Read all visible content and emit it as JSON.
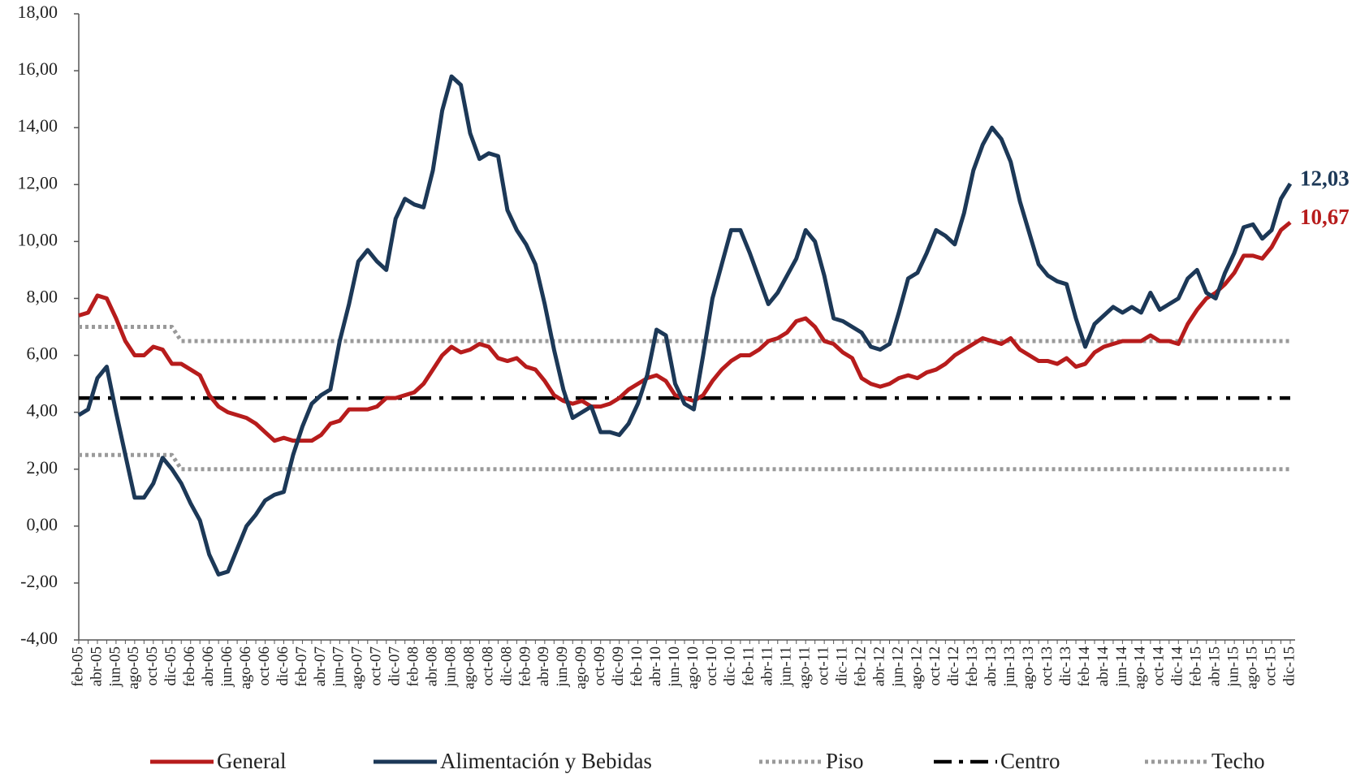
{
  "chart_data": {
    "type": "line",
    "categories": [
      "feb-05",
      null,
      "abr-05",
      null,
      "jun-05",
      null,
      "ago-05",
      null,
      "oct-05",
      null,
      "dic-05",
      null,
      "feb-06",
      null,
      "abr-06",
      null,
      "jun-06",
      null,
      "ago-06",
      null,
      "oct-06",
      null,
      "dic-06",
      null,
      "feb-07",
      null,
      "abr-07",
      null,
      "jun-07",
      null,
      "ago-07",
      null,
      "oct-07",
      null,
      "dic-07",
      null,
      "feb-08",
      null,
      "abr-08",
      null,
      "jun-08",
      null,
      "ago-08",
      null,
      "oct-08",
      null,
      "dic-08",
      null,
      "feb-09",
      null,
      "abr-09",
      null,
      "jun-09",
      null,
      "ago-09",
      null,
      "oct-09",
      null,
      "dic-09",
      null,
      "feb-10",
      null,
      "abr-10",
      null,
      "jun-10",
      null,
      "ago-10",
      null,
      "oct-10",
      null,
      "dic-10",
      null,
      "feb-11",
      null,
      "abr-11",
      null,
      "jun-11",
      null,
      "ago-11",
      null,
      "oct-11",
      null,
      "dic-11",
      null,
      "feb-12",
      null,
      "abr-12",
      null,
      "jun-12",
      null,
      "ago-12",
      null,
      "oct-12",
      null,
      "dic-12",
      null,
      "feb-13",
      null,
      "abr-13",
      null,
      "jun-13",
      null,
      "ago-13",
      null,
      "oct-13",
      null,
      "dic-13",
      null,
      "feb-14",
      null,
      "abr-14",
      null,
      "jun-14",
      null,
      "ago-14",
      null,
      "oct-14",
      null,
      "dic-14",
      null,
      "feb-15",
      null,
      "abr-15",
      null,
      "jun-15",
      null,
      "ago-15",
      null,
      "oct-15",
      null,
      "dic-15"
    ],
    "series": [
      {
        "name": "General",
        "color": "#b71c1c",
        "style": "solid",
        "last_label": "10,67",
        "values": [
          7.4,
          7.5,
          8.1,
          8.0,
          7.3,
          6.5,
          6.0,
          6.0,
          6.3,
          6.2,
          5.7,
          5.7,
          5.5,
          5.3,
          4.6,
          4.2,
          4.0,
          3.9,
          3.8,
          3.6,
          3.3,
          3.0,
          3.1,
          3.0,
          3.0,
          3.0,
          3.2,
          3.6,
          3.7,
          4.1,
          4.1,
          4.1,
          4.2,
          4.5,
          4.5,
          4.6,
          4.7,
          5.0,
          5.5,
          6.0,
          6.3,
          6.1,
          6.2,
          6.4,
          6.3,
          5.9,
          5.8,
          5.9,
          5.6,
          5.5,
          5.1,
          4.6,
          4.4,
          4.3,
          4.4,
          4.2,
          4.2,
          4.3,
          4.5,
          4.8,
          5.0,
          5.2,
          5.3,
          5.1,
          4.6,
          4.5,
          4.4,
          4.6,
          5.1,
          5.5,
          5.8,
          6.0,
          6.0,
          6.2,
          6.5,
          6.6,
          6.8,
          7.2,
          7.3,
          7.0,
          6.5,
          6.4,
          6.1,
          5.9,
          5.2,
          5.0,
          4.9,
          5.0,
          5.2,
          5.3,
          5.2,
          5.4,
          5.5,
          5.7,
          6.0,
          6.2,
          6.4,
          6.6,
          6.5,
          6.4,
          6.6,
          6.2,
          6.0,
          5.8,
          5.8,
          5.7,
          5.9,
          5.6,
          5.7,
          6.1,
          6.3,
          6.4,
          6.5,
          6.5,
          6.5,
          6.7,
          6.5,
          6.5,
          6.4,
          7.1,
          7.6,
          8.0,
          8.2,
          8.5,
          8.9,
          9.5,
          9.5,
          9.4,
          9.8,
          10.4,
          10.67
        ]
      },
      {
        "name": "Alimentación y Bebidas",
        "color": "#1c3857",
        "style": "solid",
        "last_label": "12,03",
        "values": [
          3.9,
          4.1,
          5.2,
          5.6,
          4.0,
          2.5,
          1.0,
          1.0,
          1.5,
          2.4,
          2.0,
          1.5,
          0.8,
          0.2,
          -1.0,
          -1.7,
          -1.6,
          -0.8,
          0.0,
          0.4,
          0.9,
          1.1,
          1.2,
          2.5,
          3.5,
          4.3,
          4.6,
          4.8,
          6.5,
          7.8,
          9.3,
          9.7,
          9.3,
          9.0,
          10.8,
          11.5,
          11.3,
          11.2,
          12.5,
          14.6,
          15.8,
          15.5,
          13.8,
          12.9,
          13.1,
          13.0,
          11.1,
          10.4,
          9.9,
          9.2,
          7.8,
          6.2,
          4.8,
          3.8,
          4.0,
          4.2,
          3.3,
          3.3,
          3.2,
          3.6,
          4.3,
          5.3,
          6.9,
          6.7,
          5.0,
          4.3,
          4.1,
          6.0,
          8.0,
          9.2,
          10.4,
          10.4,
          9.6,
          8.7,
          7.8,
          8.2,
          8.8,
          9.4,
          10.4,
          10.0,
          8.8,
          7.3,
          7.2,
          7.0,
          6.8,
          6.3,
          6.2,
          6.4,
          7.5,
          8.7,
          8.9,
          9.6,
          10.4,
          10.2,
          9.9,
          11.0,
          12.5,
          13.4,
          14.0,
          13.6,
          12.8,
          11.4,
          10.3,
          9.2,
          8.8,
          8.6,
          8.5,
          7.3,
          6.3,
          7.1,
          7.4,
          7.7,
          7.5,
          7.7,
          7.5,
          8.2,
          7.6,
          7.8,
          8.0,
          8.7,
          9.0,
          8.2,
          8.0,
          8.9,
          9.6,
          10.5,
          10.6,
          10.1,
          10.4,
          11.5,
          12.03
        ]
      },
      {
        "name": "Piso",
        "color": "#9a9a9a",
        "style": "dotted",
        "values": [
          2.5,
          2.5,
          2.5,
          2.5,
          2.5,
          2.5,
          2.5,
          2.5,
          2.5,
          2.5,
          2.5,
          2,
          2,
          2,
          2,
          2,
          2,
          2,
          2,
          2,
          2,
          2,
          2,
          2,
          2,
          2,
          2,
          2,
          2,
          2,
          2,
          2,
          2,
          2,
          2,
          2,
          2,
          2,
          2,
          2,
          2,
          2,
          2,
          2,
          2,
          2,
          2,
          2,
          2,
          2,
          2,
          2,
          2,
          2,
          2,
          2,
          2,
          2,
          2,
          2,
          2,
          2,
          2,
          2,
          2,
          2,
          2,
          2,
          2,
          2,
          2,
          2,
          2,
          2,
          2,
          2,
          2,
          2,
          2,
          2,
          2,
          2,
          2,
          2,
          2,
          2,
          2,
          2,
          2,
          2,
          2,
          2,
          2,
          2,
          2,
          2,
          2,
          2,
          2,
          2,
          2,
          2,
          2,
          2,
          2,
          2,
          2,
          2,
          2,
          2,
          2,
          2,
          2,
          2,
          2,
          2,
          2,
          2,
          2,
          2,
          2,
          2,
          2,
          2,
          2,
          2,
          2,
          2,
          2,
          2,
          2
        ]
      },
      {
        "name": "Centro",
        "color": "#000000",
        "style": "dashdot",
        "values": [
          4.5,
          4.5,
          4.5,
          4.5,
          4.5,
          4.5,
          4.5,
          4.5,
          4.5,
          4.5,
          4.5,
          4.5,
          4.5,
          4.5,
          4.5,
          4.5,
          4.5,
          4.5,
          4.5,
          4.5,
          4.5,
          4.5,
          4.5,
          4.5,
          4.5,
          4.5,
          4.5,
          4.5,
          4.5,
          4.5,
          4.5,
          4.5,
          4.5,
          4.5,
          4.5,
          4.5,
          4.5,
          4.5,
          4.5,
          4.5,
          4.5,
          4.5,
          4.5,
          4.5,
          4.5,
          4.5,
          4.5,
          4.5,
          4.5,
          4.5,
          4.5,
          4.5,
          4.5,
          4.5,
          4.5,
          4.5,
          4.5,
          4.5,
          4.5,
          4.5,
          4.5,
          4.5,
          4.5,
          4.5,
          4.5,
          4.5,
          4.5,
          4.5,
          4.5,
          4.5,
          4.5,
          4.5,
          4.5,
          4.5,
          4.5,
          4.5,
          4.5,
          4.5,
          4.5,
          4.5,
          4.5,
          4.5,
          4.5,
          4.5,
          4.5,
          4.5,
          4.5,
          4.5,
          4.5,
          4.5,
          4.5,
          4.5,
          4.5,
          4.5,
          4.5,
          4.5,
          4.5,
          4.5,
          4.5,
          4.5,
          4.5,
          4.5,
          4.5,
          4.5,
          4.5,
          4.5,
          4.5,
          4.5,
          4.5,
          4.5,
          4.5,
          4.5,
          4.5,
          4.5,
          4.5,
          4.5,
          4.5,
          4.5,
          4.5,
          4.5,
          4.5,
          4.5,
          4.5,
          4.5,
          4.5,
          4.5,
          4.5,
          4.5,
          4.5,
          4.5,
          4.5
        ]
      },
      {
        "name": "Techo",
        "color": "#9a9a9a",
        "style": "dotted",
        "values": [
          7,
          7,
          7,
          7,
          7,
          7,
          7,
          7,
          7,
          7,
          7,
          6.5,
          6.5,
          6.5,
          6.5,
          6.5,
          6.5,
          6.5,
          6.5,
          6.5,
          6.5,
          6.5,
          6.5,
          6.5,
          6.5,
          6.5,
          6.5,
          6.5,
          6.5,
          6.5,
          6.5,
          6.5,
          6.5,
          6.5,
          6.5,
          6.5,
          6.5,
          6.5,
          6.5,
          6.5,
          6.5,
          6.5,
          6.5,
          6.5,
          6.5,
          6.5,
          6.5,
          6.5,
          6.5,
          6.5,
          6.5,
          6.5,
          6.5,
          6.5,
          6.5,
          6.5,
          6.5,
          6.5,
          6.5,
          6.5,
          6.5,
          6.5,
          6.5,
          6.5,
          6.5,
          6.5,
          6.5,
          6.5,
          6.5,
          6.5,
          6.5,
          6.5,
          6.5,
          6.5,
          6.5,
          6.5,
          6.5,
          6.5,
          6.5,
          6.5,
          6.5,
          6.5,
          6.5,
          6.5,
          6.5,
          6.5,
          6.5,
          6.5,
          6.5,
          6.5,
          6.5,
          6.5,
          6.5,
          6.5,
          6.5,
          6.5,
          6.5,
          6.5,
          6.5,
          6.5,
          6.5,
          6.5,
          6.5,
          6.5,
          6.5,
          6.5,
          6.5,
          6.5,
          6.5,
          6.5,
          6.5,
          6.5,
          6.5,
          6.5,
          6.5,
          6.5,
          6.5,
          6.5,
          6.5,
          6.5,
          6.5,
          6.5,
          6.5,
          6.5,
          6.5,
          6.5,
          6.5,
          6.5,
          6.5,
          6.5,
          6.5
        ]
      }
    ],
    "ylim": [
      -4,
      18
    ],
    "yticks": [
      {
        "value": -4,
        "label": "-4,00"
      },
      {
        "value": -2,
        "label": "-2,00"
      },
      {
        "value": 0,
        "label": "0,00"
      },
      {
        "value": 2,
        "label": "2,00"
      },
      {
        "value": 4,
        "label": "4,00"
      },
      {
        "value": 6,
        "label": "6,00"
      },
      {
        "value": 8,
        "label": "8,00"
      },
      {
        "value": 10,
        "label": "10,00"
      },
      {
        "value": 12,
        "label": "12,00"
      },
      {
        "value": 14,
        "label": "14,00"
      },
      {
        "value": 16,
        "label": "16,00"
      },
      {
        "value": 18,
        "label": "18,00"
      }
    ],
    "grid": false,
    "legend": "bottom"
  }
}
